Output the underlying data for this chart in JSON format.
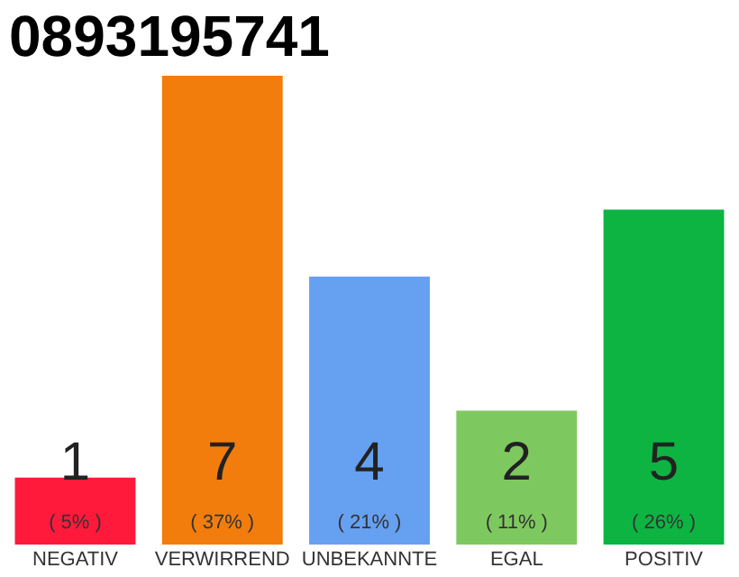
{
  "chart_data": {
    "type": "bar",
    "title": "0893195741",
    "categories": [
      "NEGATIV",
      "VERWIRREND",
      "UNBEKANNTE",
      "EGAL",
      "POSITIV"
    ],
    "values": [
      1,
      7,
      4,
      2,
      5
    ],
    "colors": [
      "#ff1a3c",
      "#f27d0c",
      "#66a0f0",
      "#7ec95f",
      "#0db442"
    ],
    "data_labels": true,
    "annotations": [
      "( 5% )",
      "( 37% )",
      "( 21% )",
      "( 11% )",
      "( 26% )"
    ],
    "grid": false,
    "legend": false
  }
}
